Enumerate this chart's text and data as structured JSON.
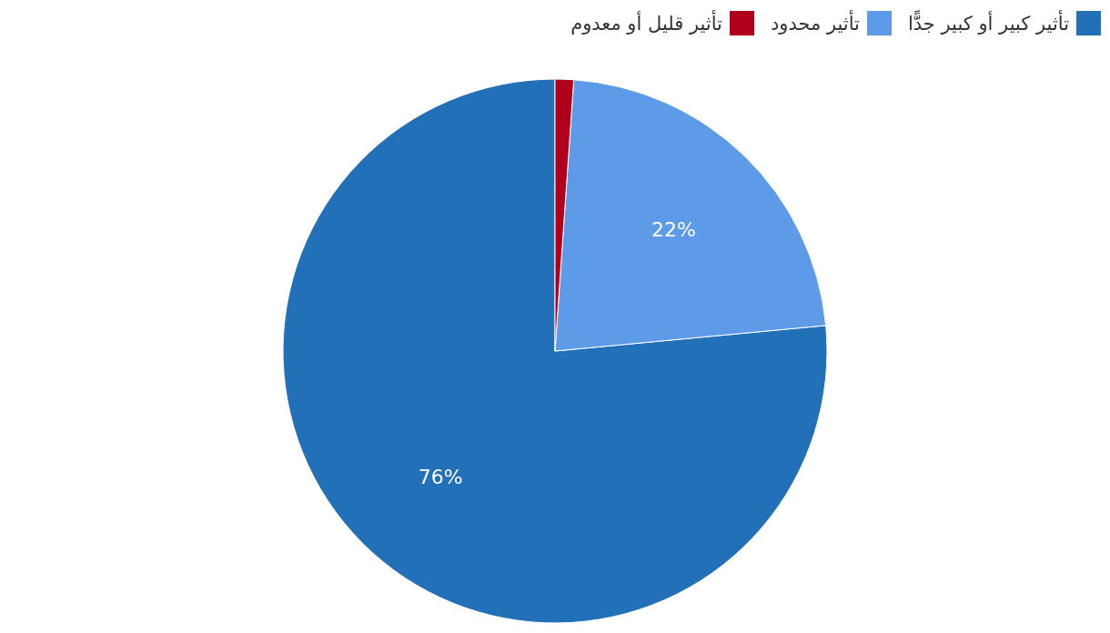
{
  "chart_data": {
    "type": "pie",
    "categories": [
      "تأثير كبير أو كبير جدًّا",
      "تأثير محدود",
      "تأثير قليل أو معدوم"
    ],
    "values": [
      76.5,
      22.4,
      1.1
    ],
    "colors": [
      "#2170b8",
      "#5d9be8",
      "#b0001e"
    ],
    "value_labels": [
      "76%",
      "22%",
      null
    ],
    "legend": "top right"
  }
}
